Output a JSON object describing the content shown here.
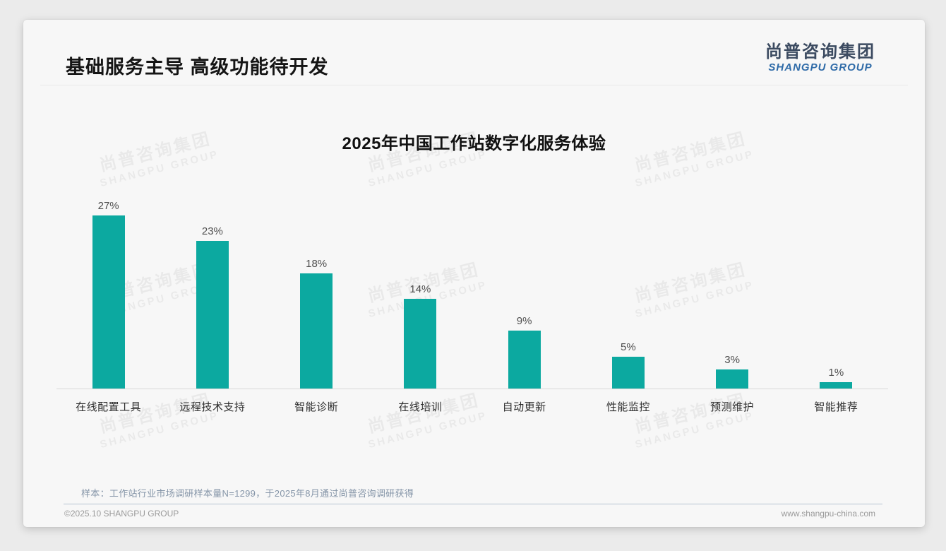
{
  "header": {
    "title": "基础服务主导 高级功能待开发",
    "logo": {
      "cn": "尚普咨询集团",
      "en": "SHANGPU GROUP"
    }
  },
  "chart_data": {
    "type": "bar",
    "title": "2025年中国工作站数字化服务体验",
    "categories": [
      "在线配置工具",
      "远程技术支持",
      "智能诊断",
      "在线培训",
      "自动更新",
      "性能监控",
      "预测维护",
      "智能推荐"
    ],
    "values": [
      27,
      23,
      18,
      14,
      9,
      5,
      3,
      1
    ],
    "value_labels": [
      "27%",
      "23%",
      "18%",
      "14%",
      "9%",
      "5%",
      "3%",
      "1%"
    ],
    "unit": "%",
    "bar_color": "#0ca9a0",
    "ylim": [
      0,
      30
    ],
    "grid": false,
    "legend": "none",
    "value_labels_position": "above-bars",
    "axis_line_color": "#d8d8d8"
  },
  "watermark": {
    "cn": "尚普咨询集团",
    "en": "SHANGPU GROUP"
  },
  "footnote": {
    "text": "样本：工作站行业市场调研样本量N=1299，于2025年8月通过尚普咨询调研获得"
  },
  "footer": {
    "copyright": "©2025.10 SHANGPU GROUP",
    "website": "www.shangpu-china.com"
  },
  "colors": {
    "accent_teal": "#0ca9a0",
    "logo_blue": "#2f6ba8",
    "logo_dark": "#3c4b61",
    "slide_bg": "#f7f7f7",
    "page_bg": "#ebebeb"
  }
}
